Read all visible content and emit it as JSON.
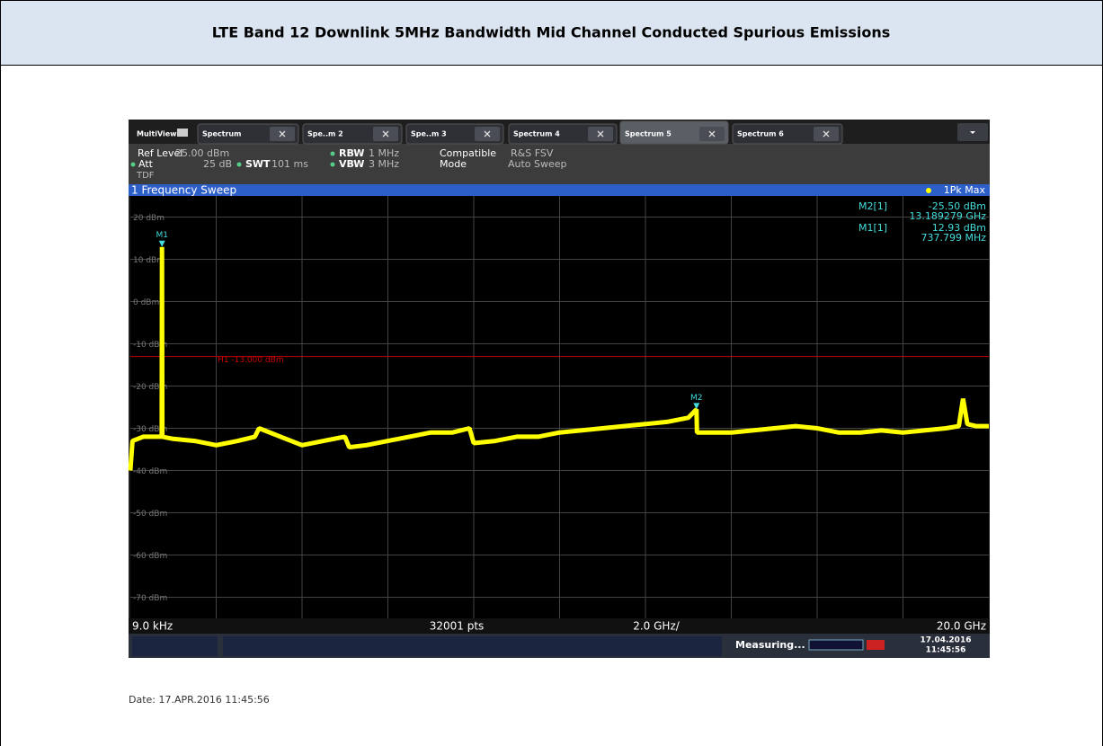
{
  "header": {
    "title": "LTE Band 12 Downlink 5MHz Bandwidth Mid Channel Conducted Spurious Emissions"
  },
  "analyzer": {
    "tabs": [
      "MultiView",
      "Spectrum",
      "Spe..m 2",
      "Spe..m 3",
      "Spectrum 4",
      "Spectrum 5",
      "Spectrum 6"
    ],
    "active_tab": 5,
    "info": {
      "ref_level_label": "Ref Level",
      "ref_level": "25.00 dBm",
      "att_label": "Att",
      "att": "25 dB",
      "swt_label": "SWT",
      "swt": "101 ms",
      "rbw_label": "RBW",
      "rbw": "1 MHz",
      "vbw_label": "VBW",
      "vbw": "3 MHz",
      "compatible_label": "Compatible",
      "compatible": "R&S FSV",
      "mode_label": "Mode",
      "mode": "Auto Sweep",
      "tdf": "TDF"
    },
    "sweep_title": "1 Frequency Sweep",
    "detector": "1Pk Max",
    "marker_table": [
      [
        "M2[1]",
        "-25.50 dBm",
        "13.189279 GHz"
      ],
      [
        "M1[1]",
        "12.93 dBm",
        "737.799 MHz"
      ]
    ],
    "chart": {
      "type": "line",
      "ylim": [
        -75,
        25
      ],
      "yticks": [
        {
          "value": 20,
          "label": "20 dBm"
        },
        {
          "value": 10,
          "label": "10 dBm"
        },
        {
          "value": 0,
          "label": "0 dBm"
        },
        {
          "value": -10,
          "label": "-10 dBm"
        },
        {
          "value": -20,
          "label": "-20 dBm"
        },
        {
          "value": -30,
          "label": "-30 dBm"
        },
        {
          "value": -40,
          "label": "-40 dBm"
        },
        {
          "value": -50,
          "label": "-50 dBm"
        },
        {
          "value": -60,
          "label": "-60 dBm"
        },
        {
          "value": -70,
          "label": "-70 dBm"
        }
      ],
      "xlim": [
        9e-06,
        20
      ],
      "xticks": [
        2,
        4,
        6,
        8,
        10,
        12,
        14,
        16,
        18
      ],
      "limit_line": {
        "value": -13,
        "label": "H1 -13.000 dBm",
        "color": "#cc0000"
      },
      "trace": {
        "color": "#ffff00",
        "x": [
          9e-06,
          0.05,
          0.3,
          0.73,
          0.737799,
          0.745,
          1.0,
          1.5,
          2.0,
          2.5,
          2.9,
          3.0,
          3.5,
          4.0,
          4.5,
          5.0,
          5.1,
          5.5,
          6.0,
          6.5,
          7.0,
          7.5,
          7.9,
          8.0,
          8.5,
          9.0,
          9.5,
          10.0,
          10.5,
          11.0,
          11.5,
          12.0,
          12.5,
          13.0,
          13.189279,
          13.2,
          13.5,
          14.0,
          14.5,
          15.0,
          15.5,
          16.0,
          16.5,
          17.0,
          17.5,
          18.0,
          18.5,
          19.0,
          19.3,
          19.4,
          19.5,
          19.7,
          20.0
        ],
        "values": [
          -40,
          -33,
          -32,
          -32,
          12.93,
          -32,
          -32.5,
          -33,
          -34,
          -33,
          -32,
          -30,
          -32,
          -34,
          -33,
          -32,
          -34.5,
          -34,
          -33,
          -32,
          -31,
          -31,
          -30,
          -33.5,
          -33,
          -32,
          -32,
          -31,
          -30.5,
          -30,
          -29.5,
          -29,
          -28.5,
          -27.5,
          -25.5,
          -31,
          -31,
          -31,
          -30.5,
          -30,
          -29.5,
          -30,
          -31,
          -31,
          -30.5,
          -31,
          -30.5,
          -30,
          -29.5,
          -23,
          -29,
          -29.5,
          -29.5
        ]
      },
      "markers": [
        {
          "label": "M1",
          "x": 0.737799,
          "y": 12.93
        },
        {
          "label": "M2",
          "x": 13.189279,
          "y": -25.5
        }
      ]
    },
    "footer": {
      "start": "9.0 kHz",
      "points": "32001 pts",
      "span_div": "2.0 GHz/",
      "stop": "20.0 GHz"
    },
    "status": {
      "state": "Measuring...",
      "date": "17.04.2016",
      "time": "11:45:56"
    }
  },
  "date_line": "Date: 17.APR.2016  11:45:56"
}
